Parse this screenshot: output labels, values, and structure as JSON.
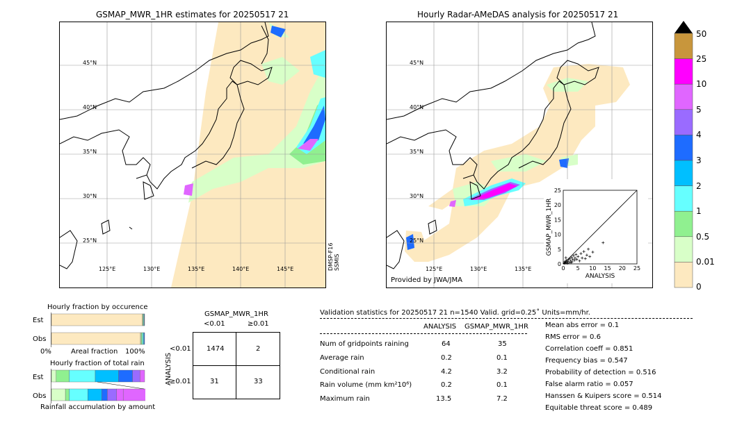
{
  "left_map": {
    "title": "GSMAP_MWR_1HR estimates for 20250517 21",
    "lat_labels": [
      "45°N",
      "40°N",
      "35°N",
      "30°N",
      "25°N"
    ],
    "lon_labels": [
      "125°E",
      "130°E",
      "135°E",
      "140°E",
      "145°E"
    ],
    "sensor_line1": "DMSP-F16",
    "sensor_line2": "SSMIS"
  },
  "right_map": {
    "title": "Hourly Radar-AMeDAS analysis for 20250517 21",
    "lat_labels": [
      "45°N",
      "40°N",
      "35°N",
      "30°N",
      "25°N"
    ],
    "lon_labels": [
      "125°E",
      "130°E",
      "135°E"
    ],
    "credit": "Provided by JWA/JMA"
  },
  "colorbar": {
    "labels": [
      "50",
      "25",
      "10",
      "5",
      "4",
      "3",
      "2",
      "1",
      "0.5",
      "0.01",
      "0"
    ],
    "colors": [
      "#c8963c",
      "#ff00ff",
      "#e066ff",
      "#9a6bff",
      "#1e6cff",
      "#00bfff",
      "#66ffff",
      "#90f090",
      "#d8ffc8",
      "#fde9c0"
    ]
  },
  "occurrence": {
    "title": "Hourly fraction by occurence",
    "est_label": "Est",
    "obs_label": "Obs",
    "axis_left": "0%",
    "axis_mid": "Areal fraction",
    "axis_right": "100%"
  },
  "total_rain": {
    "title": "Hourly fraction of total rain",
    "est_label": "Est",
    "obs_label": "Obs",
    "footer": "Rainfall accumulation by amount"
  },
  "contingency": {
    "header": "GSMAP_MWR_1HR",
    "col_lt": "<0.01",
    "col_ge": "≥0.01",
    "side_label": "ANALYSIS",
    "row_lt": "<0.01",
    "row_ge": "≥0.01",
    "cells": [
      "1474",
      "2",
      "31",
      "33"
    ]
  },
  "validation": {
    "header": "Validation statistics for 20250517 21  n=1540 Valid. grid=0.25˚ Units=mm/hr.",
    "col_analysis": "ANALYSIS",
    "col_gsmap": "GSMAP_MWR_1HR",
    "rows": [
      {
        "label": "Num of gridpoints raining",
        "analysis": "64",
        "gsmap": "35"
      },
      {
        "label": "Average rain",
        "analysis": "0.2",
        "gsmap": "0.1"
      },
      {
        "label": "Conditional rain",
        "analysis": "4.2",
        "gsmap": "3.2"
      },
      {
        "label": "Rain volume (mm km²10⁶)",
        "analysis": "0.2",
        "gsmap": "0.1"
      },
      {
        "label": "Maximum rain",
        "analysis": "13.5",
        "gsmap": "7.2"
      }
    ],
    "scores": [
      "Mean abs error =    0.1",
      "RMS error =    0.6",
      "Correlation coeff =  0.851",
      "Frequency bias =  0.547",
      "Probability of detection =  0.516",
      "False alarm ratio =  0.057",
      "Hanssen & Kuipers score =  0.514",
      "Equitable threat score =  0.489"
    ]
  },
  "chart_data": [
    {
      "type": "scatter",
      "xlabel": "ANALYSIS",
      "ylabel": "GSMAP_MWR_1HR",
      "xlim": [
        0,
        25
      ],
      "ylim": [
        0,
        25
      ],
      "ticks": [
        "0",
        "5",
        "10",
        "15",
        "20",
        "25"
      ],
      "points": [
        [
          0.3,
          0.2
        ],
        [
          0.5,
          0.4
        ],
        [
          0.8,
          0.3
        ],
        [
          1.0,
          1.2
        ],
        [
          1.2,
          0.6
        ],
        [
          1.5,
          0.9
        ],
        [
          1.8,
          1.5
        ],
        [
          2.0,
          0.5
        ],
        [
          2.2,
          1.8
        ],
        [
          2.5,
          1.0
        ],
        [
          2.8,
          2.2
        ],
        [
          3.0,
          0.7
        ],
        [
          3.2,
          1.6
        ],
        [
          3.5,
          2.8
        ],
        [
          3.8,
          1.2
        ],
        [
          4.0,
          2.0
        ],
        [
          4.3,
          3.2
        ],
        [
          4.6,
          1.5
        ],
        [
          5.0,
          2.5
        ],
        [
          5.5,
          1.0
        ],
        [
          6.0,
          3.5
        ],
        [
          6.4,
          2.0
        ],
        [
          7.0,
          4.2
        ],
        [
          7.5,
          1.8
        ],
        [
          8.0,
          3.0
        ],
        [
          8.5,
          5.0
        ],
        [
          9.0,
          2.5
        ],
        [
          10.0,
          4.0
        ],
        [
          13.5,
          7.2
        ],
        [
          0.6,
          0.8
        ],
        [
          1.4,
          0.2
        ],
        [
          2.6,
          0.4
        ],
        [
          0.9,
          2.1
        ]
      ]
    },
    {
      "type": "bar",
      "title": "Hourly fraction by occurence",
      "categories": [
        "Est",
        "Obs"
      ],
      "series": [
        {
          "values": [
            0.976,
            0.955
          ]
        },
        {
          "values": [
            0.005,
            0.008
          ]
        },
        {
          "values": [
            0.007,
            0.012
          ]
        },
        {
          "values": [
            0.006,
            0.012
          ]
        },
        {
          "values": [
            0.003,
            0.006
          ]
        },
        {
          "values": [
            0.003,
            0.007
          ]
        }
      ]
    },
    {
      "type": "bar",
      "title": "Hourly fraction of total rain",
      "categories": [
        "Est",
        "Obs"
      ],
      "series": [
        {
          "values": [
            0.05,
            0.15
          ]
        },
        {
          "values": [
            0.14,
            0.04
          ]
        },
        {
          "values": [
            0.28,
            0.2
          ]
        },
        {
          "values": [
            0.25,
            0.15
          ]
        },
        {
          "values": [
            0.15,
            0.06
          ]
        },
        {
          "values": [
            0.08,
            0.1
          ]
        },
        {
          "values": [
            0.05,
            0.07
          ]
        },
        {
          "values": [
            0.0,
            0.34
          ]
        },
        {
          "values": [
            0.0,
            0.09
          ]
        }
      ]
    }
  ]
}
